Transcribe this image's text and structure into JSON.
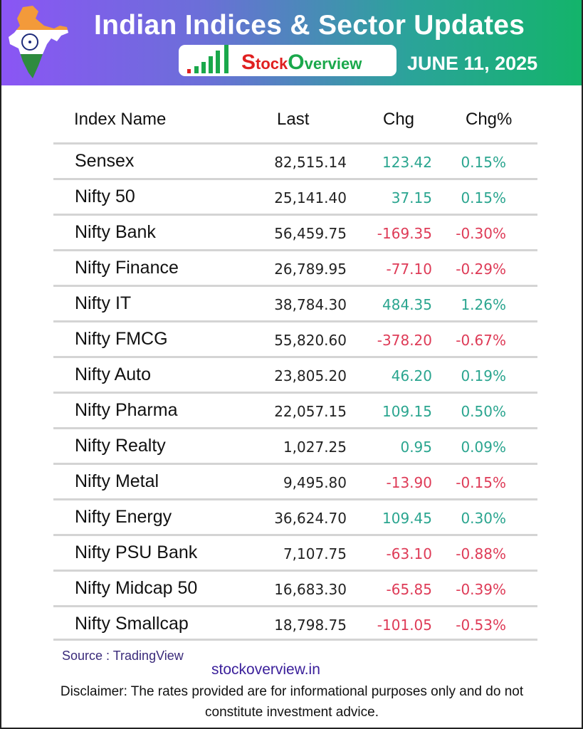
{
  "header": {
    "title": "Indian Indices & Sector Updates",
    "date": "JUNE 11, 2025",
    "logo_text_s": "S",
    "logo_text_tock": "tock",
    "logo_text_o": "O",
    "logo_text_verview": "verview"
  },
  "table": {
    "columns": [
      "Index Name",
      "Last",
      "Chg",
      "Chg%"
    ],
    "rows": [
      {
        "name": "Sensex",
        "last": "82,515.14",
        "chg": "123.42",
        "pct": "0.15%",
        "dir": "up"
      },
      {
        "name": "Nifty 50",
        "last": "25,141.40",
        "chg": "37.15",
        "pct": "0.15%",
        "dir": "up"
      },
      {
        "name": "Nifty Bank",
        "last": "56,459.75",
        "chg": "-169.35",
        "pct": "-0.30%",
        "dir": "down"
      },
      {
        "name": "Nifty Finance",
        "last": "26,789.95",
        "chg": "-77.10",
        "pct": "-0.29%",
        "dir": "down"
      },
      {
        "name": "Nifty IT",
        "last": "38,784.30",
        "chg": "484.35",
        "pct": "1.26%",
        "dir": "up"
      },
      {
        "name": "Nifty FMCG",
        "last": "55,820.60",
        "chg": "-378.20",
        "pct": "-0.67%",
        "dir": "down"
      },
      {
        "name": "Nifty Auto",
        "last": "23,805.20",
        "chg": "46.20",
        "pct": "0.19%",
        "dir": "up"
      },
      {
        "name": "Nifty Pharma",
        "last": "22,057.15",
        "chg": "109.15",
        "pct": "0.50%",
        "dir": "up"
      },
      {
        "name": "Nifty Realty",
        "last": "1,027.25",
        "chg": "0.95",
        "pct": "0.09%",
        "dir": "up"
      },
      {
        "name": "Nifty Metal",
        "last": "9,495.80",
        "chg": "-13.90",
        "pct": "-0.15%",
        "dir": "down"
      },
      {
        "name": "Nifty Energy",
        "last": "36,624.70",
        "chg": "109.45",
        "pct": "0.30%",
        "dir": "up"
      },
      {
        "name": "Nifty PSU Bank",
        "last": "7,107.75",
        "chg": "-63.10",
        "pct": "-0.88%",
        "dir": "down"
      },
      {
        "name": "Nifty Midcap 50",
        "last": "16,683.30",
        "chg": "-65.85",
        "pct": "-0.39%",
        "dir": "down"
      },
      {
        "name": "Nifty Smallcap",
        "last": "18,798.75",
        "chg": "-101.05",
        "pct": "-0.53%",
        "dir": "down"
      }
    ]
  },
  "footer": {
    "source": "Source : TradingView",
    "site": "stockoverview.in",
    "disclaimer": "Disclaimer: The rates provided are for informational purposes only and do not constitute investment advice."
  },
  "colors": {
    "up": "#2aa58f",
    "down": "#de3b57",
    "header_start": "#8b55f5",
    "header_end": "#13b46a"
  }
}
